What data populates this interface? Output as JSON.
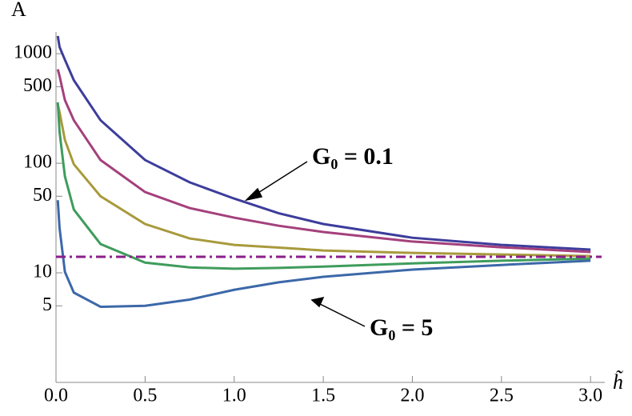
{
  "chart_data": {
    "type": "line",
    "xlabel": "h̃",
    "ylabel": "A",
    "x": [
      0.01,
      0.02,
      0.05,
      0.1,
      0.25,
      0.5,
      0.75,
      1,
      1.25,
      1.5,
      2,
      2.5,
      3
    ],
    "series": [
      {
        "color": "#3d3d9c",
        "values": [
          1450,
          1150,
          880,
          573,
          247,
          107,
          67,
          47.6,
          35,
          27.9,
          20.9,
          18,
          16.3
        ]
      },
      {
        "color": "#a4407c",
        "values": [
          720,
          625,
          377,
          247,
          107,
          54.6,
          39,
          31.9,
          26.9,
          23.6,
          19.3,
          17.1,
          15.5
        ]
      },
      {
        "color": "#a89a3c",
        "values": [
          345,
          293,
          163,
          98,
          50,
          27.9,
          20.6,
          18,
          17,
          16,
          15.2,
          14.7,
          14.2
        ]
      },
      {
        "color": "#3f9c5c",
        "values": [
          360,
          193,
          76,
          37.8,
          18.3,
          12.4,
          11.2,
          10.9,
          11.1,
          11.4,
          12.2,
          12.9,
          13.5
        ]
      },
      {
        "color": "#3c68a8",
        "values": [
          46,
          25.6,
          10.2,
          6.6,
          4.9,
          5,
          5.7,
          7,
          8.2,
          9.2,
          10.7,
          11.8,
          12.9
        ]
      }
    ],
    "hline": {
      "value": 14,
      "color": "#8b1f8b",
      "style": "dashdot"
    },
    "annotations": [
      "G₀ = 0.1",
      "G₀ = 5"
    ],
    "xlim": [
      0,
      3.08
    ],
    "ylim": [
      1,
      1500
    ],
    "ylog": true,
    "xticks": [
      {
        "value": 0,
        "label": "0.0"
      },
      0.5,
      {
        "value": 1,
        "label": "1.0"
      },
      1.5,
      {
        "value": 2,
        "label": "2.0"
      },
      2.5,
      {
        "value": 3,
        "label": "3.0"
      }
    ],
    "yticks": [
      5,
      10,
      50,
      100,
      500,
      1000
    ]
  }
}
